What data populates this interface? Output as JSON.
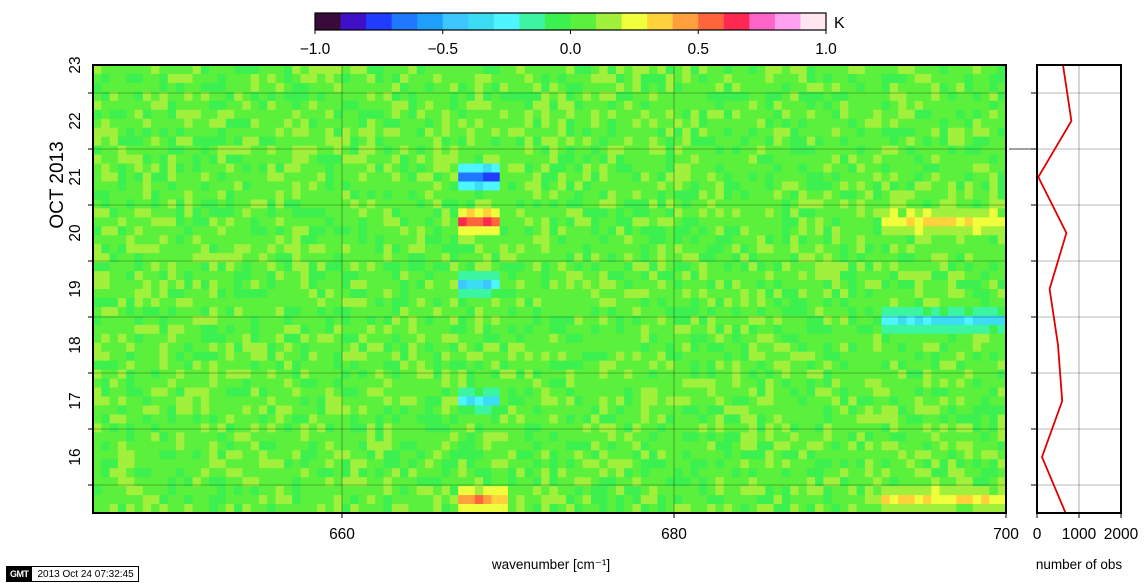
{
  "chart_data": [
    {
      "type": "heatmap",
      "xlabel": "wavenumber [cm⁻¹]",
      "ylabel": "OCT 2013",
      "xlim": [
        645,
        700
      ],
      "x_ticks": [
        660,
        680,
        700
      ],
      "y_ticks": [
        "16",
        "17",
        "18",
        "19",
        "20",
        "21",
        "22",
        "23"
      ],
      "ylim": [
        "2013-10-15T12:00",
        "2013-10-23T12:00"
      ],
      "grid": true,
      "colorbar": {
        "unit": "K",
        "min": -1.0,
        "max": 1.0,
        "tick_values": [
          -1.0,
          -0.5,
          0.0,
          0.5,
          1.0
        ],
        "tick_labels": [
          "−1.0",
          "−0.5",
          "0.0",
          "0.5",
          "1.0"
        ],
        "colors": [
          "#3a0a3a",
          "#3f10c8",
          "#1f3cff",
          "#1f78ff",
          "#1fa0ff",
          "#3cc8ff",
          "#3cdcf5",
          "#4cf5ff",
          "#3cf5a0",
          "#3cf050",
          "#5af03c",
          "#a0f03c",
          "#f0ff3c",
          "#ffd23c",
          "#ffa03c",
          "#ff643c",
          "#ff2850",
          "#ff64c8",
          "#ffa0f0",
          "#ffe6f0"
        ]
      },
      "rows": 50,
      "columns": 110,
      "background_value": 0.05,
      "anomalies": [
        {
          "x": [
            667.5,
            669.5
          ],
          "y": [
            "2013-10-21T12:00",
            "2013-10-21T12:00"
          ],
          "value": -0.75
        },
        {
          "x": [
            667.5,
            669.5
          ],
          "y": [
            "2013-10-20T18:00",
            "2013-10-20T18:00"
          ],
          "value": 0.55
        },
        {
          "x": [
            667.5,
            670.0
          ],
          "y": [
            "2013-10-15T18:00",
            "2013-10-15T18:00"
          ],
          "value": 0.5
        },
        {
          "x": [
            693.0,
            700.0
          ],
          "y": [
            "2013-10-20T18:00",
            "2013-10-20T18:00"
          ],
          "value": 0.3
        },
        {
          "x": [
            693.0,
            700.0
          ],
          "y": [
            "2013-10-19T00:00",
            "2013-10-19T00:00"
          ],
          "value": -0.35
        },
        {
          "x": [
            693.0,
            700.0
          ],
          "y": [
            "2013-10-15T18:00",
            "2013-10-15T18:00"
          ],
          "value": 0.3
        },
        {
          "x": [
            667.5,
            669.5
          ],
          "y": [
            "2013-10-19T12:00",
            "2013-10-19T12:00"
          ],
          "value": -0.4
        },
        {
          "x": [
            667.5,
            669.5
          ],
          "y": [
            "2013-10-17T12:00",
            "2013-10-17T12:00"
          ],
          "value": -0.35
        }
      ]
    },
    {
      "type": "line",
      "xlabel": "number of obs",
      "x_ticks": [
        0,
        1000,
        2000
      ],
      "xlim": [
        0,
        2000
      ],
      "grid": true,
      "series": [
        {
          "color": "#e00000",
          "points": [
            {
              "y": "2013-10-23T12:00",
              "x": 620
            },
            {
              "y": "2013-10-22T12:00",
              "x": 820
            },
            {
              "y": "2013-10-21T12:00",
              "x": 30
            },
            {
              "y": "2013-10-20T12:00",
              "x": 700
            },
            {
              "y": "2013-10-19T12:00",
              "x": 300
            },
            {
              "y": "2013-10-18T12:00",
              "x": 500
            },
            {
              "y": "2013-10-17T12:00",
              "x": 600
            },
            {
              "y": "2013-10-16T12:00",
              "x": 120
            },
            {
              "y": "2013-10-15T12:00",
              "x": 680
            }
          ]
        }
      ]
    }
  ],
  "footer": {
    "logo_text": "GMT",
    "timestamp": "2013 Oct 24 07:32:45"
  }
}
